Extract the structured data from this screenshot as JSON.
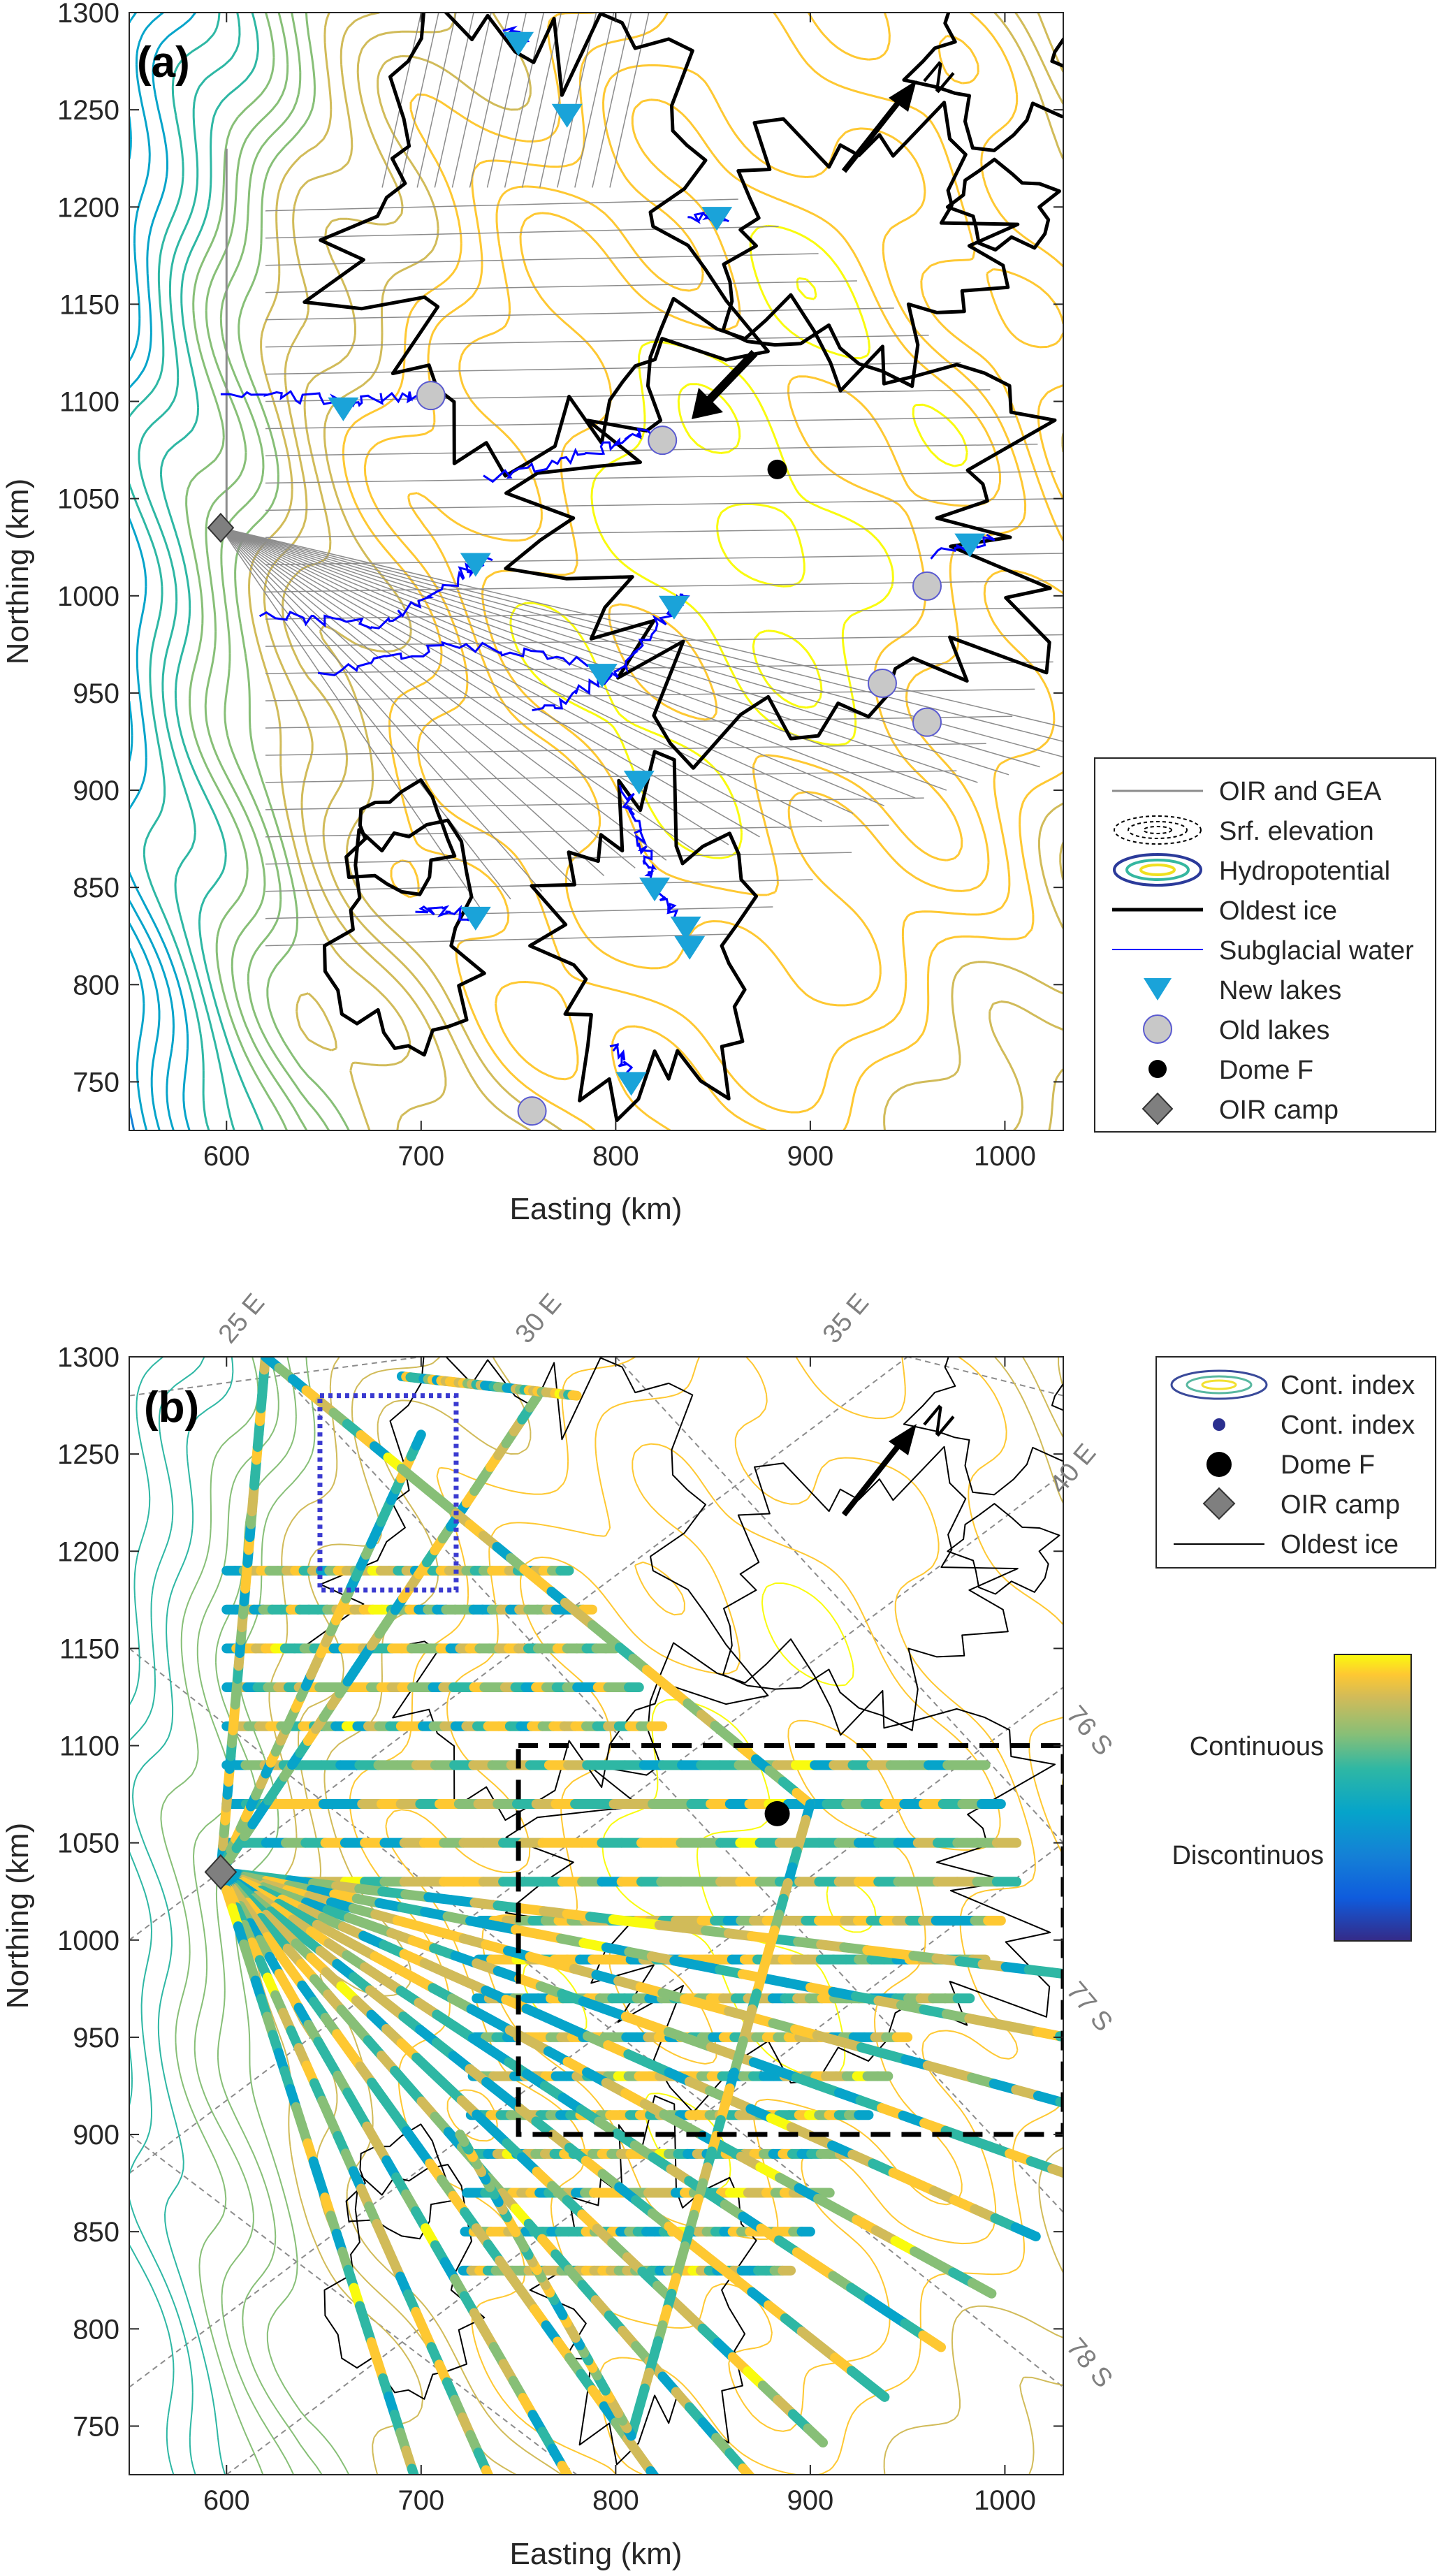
{
  "chart_data": [
    {
      "type": "contour",
      "panel_label": "(a)",
      "xlabel": "Easting (km)",
      "ylabel": "Northing (km)",
      "xlim": [
        550,
        1030
      ],
      "ylim": [
        725,
        1300
      ],
      "xticks": [
        600,
        700,
        800,
        900,
        1000
      ],
      "yticks": [
        750,
        800,
        850,
        900,
        950,
        1000,
        1050,
        1100,
        1150,
        1200,
        1250,
        1300
      ],
      "legend": {
        "position": "right",
        "entries": [
          "OIR and GEA",
          "Srf. elevation",
          "Hydropotential",
          "Oldest ice",
          "Subglacial water",
          "New lakes",
          "Old lakes",
          "Dome F",
          "OIR camp"
        ]
      },
      "points": {
        "new_lakes": [
          [
            660,
            1097
          ],
          [
            728,
            1017
          ],
          [
            830,
            995
          ],
          [
            793,
            960
          ],
          [
            982,
            1027
          ],
          [
            750,
            1285
          ],
          [
            775,
            1248
          ],
          [
            852,
            1195
          ],
          [
            812,
            905
          ],
          [
            820,
            850
          ],
          [
            836,
            830
          ],
          [
            838,
            820
          ],
          [
            728,
            835
          ],
          [
            808,
            750
          ]
        ],
        "old_lakes": [
          [
            705,
            1103
          ],
          [
            824,
            1080
          ],
          [
            960,
            1005
          ],
          [
            937,
            955
          ],
          [
            960,
            935
          ],
          [
            757,
            735
          ]
        ],
        "dome_f": [
          883,
          1065
        ],
        "oir_camp": [
          597,
          1035
        ]
      },
      "colors": {
        "new_lakes": "#1aa3d9",
        "old_lakes": "#c8c8c8",
        "subglacial_water": "#0000ff",
        "oldest_ice": "#000000",
        "tracks": "#8c8c8c"
      }
    },
    {
      "type": "scatter",
      "panel_label": "(b)",
      "xlabel": "Easting (km)",
      "ylabel": "Northing (km)",
      "xlim": [
        550,
        1030
      ],
      "ylim": [
        725,
        1300
      ],
      "xticks": [
        600,
        700,
        800,
        900,
        1000
      ],
      "yticks": [
        750,
        800,
        850,
        900,
        950,
        1000,
        1050,
        1100,
        1150,
        1200,
        1250,
        1300
      ],
      "graticule_labels": [
        "25 E",
        "30 E",
        "35 E",
        "40 E",
        "76 S",
        "77 S",
        "78 S"
      ],
      "legend": {
        "position": "top-right",
        "entries": [
          "Cont. index",
          "Cont. index",
          "Dome F",
          "OIR camp",
          "Oldest ice"
        ]
      },
      "colorbar": {
        "labels": [
          "Continuous",
          "Discontinuos"
        ],
        "colormap": "parula"
      },
      "boxes": {
        "dashed_black": {
          "x": [
            750,
            1030
          ],
          "y": [
            900,
            1100
          ]
        },
        "dotted_blue": {
          "x": [
            648,
            718
          ],
          "y": [
            1180,
            1280
          ]
        }
      },
      "points": {
        "dome_f": [
          883,
          1065
        ],
        "oir_camp": [
          597,
          1035
        ]
      }
    }
  ]
}
